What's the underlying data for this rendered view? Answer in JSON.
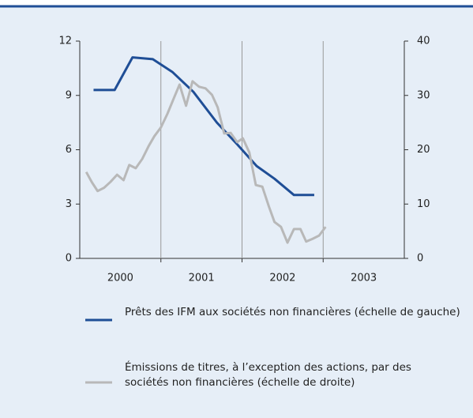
{
  "chart_data": {
    "type": "line",
    "categories": [
      "2000",
      "2001",
      "2002",
      "2003"
    ],
    "xlim": [
      2000,
      2004
    ],
    "ylim": [
      0,
      12
    ],
    "yticks": [
      0,
      3,
      6,
      9,
      12
    ],
    "y2lim": [
      0,
      40
    ],
    "y2ticks": [
      0,
      10,
      20,
      30,
      40
    ],
    "grid": true,
    "series": [
      {
        "name": "Prêts des IFM aux sociétés non financières (échelle de gauche)",
        "color": "#1f4e96",
        "x": [
          2000.17,
          2000.43,
          2000.65,
          2000.9,
          2001.14,
          2001.4,
          2001.69,
          2001.94,
          2002.18,
          2002.4,
          2002.64,
          2002.89
        ],
        "values": [
          9.3,
          9.3,
          11.1,
          11.0,
          10.3,
          9.2,
          7.5,
          6.3,
          5.1,
          4.4,
          3.5,
          3.5
        ]
      },
      {
        "name": "Émissions de titres, à l’exception des actions, par des sociétés non financières (échelle de droite)",
        "color": "#b8b8b8",
        "axis": "y2",
        "x": [
          2000.08,
          2000.15,
          2000.22,
          2000.3,
          2000.38,
          2000.46,
          2000.54,
          2000.61,
          2000.69,
          2000.77,
          2000.85,
          2000.92,
          2001.0,
          2001.08,
          2001.16,
          2001.23,
          2001.31,
          2001.39,
          2001.47,
          2001.55,
          2001.63,
          2001.7,
          2001.78,
          2001.86,
          2001.94,
          2002.01,
          2002.09,
          2002.17,
          2002.25,
          2002.33,
          2002.4,
          2002.48,
          2002.56,
          2002.64,
          2002.72,
          2002.79,
          2002.87,
          2002.95,
          2003.03
        ],
        "values": [
          15.9,
          14.0,
          12.4,
          13.0,
          14.1,
          15.4,
          14.4,
          17.2,
          16.6,
          18.3,
          20.7,
          22.5,
          24.1,
          26.6,
          29.5,
          32.0,
          28.1,
          32.6,
          31.6,
          31.3,
          30.1,
          27.8,
          23.0,
          23.1,
          21.4,
          22.1,
          19.5,
          13.5,
          13.2,
          9.6,
          6.7,
          5.8,
          2.9,
          5.4,
          5.4,
          3.1,
          3.6,
          4.2,
          5.8
        ]
      }
    ]
  }
}
